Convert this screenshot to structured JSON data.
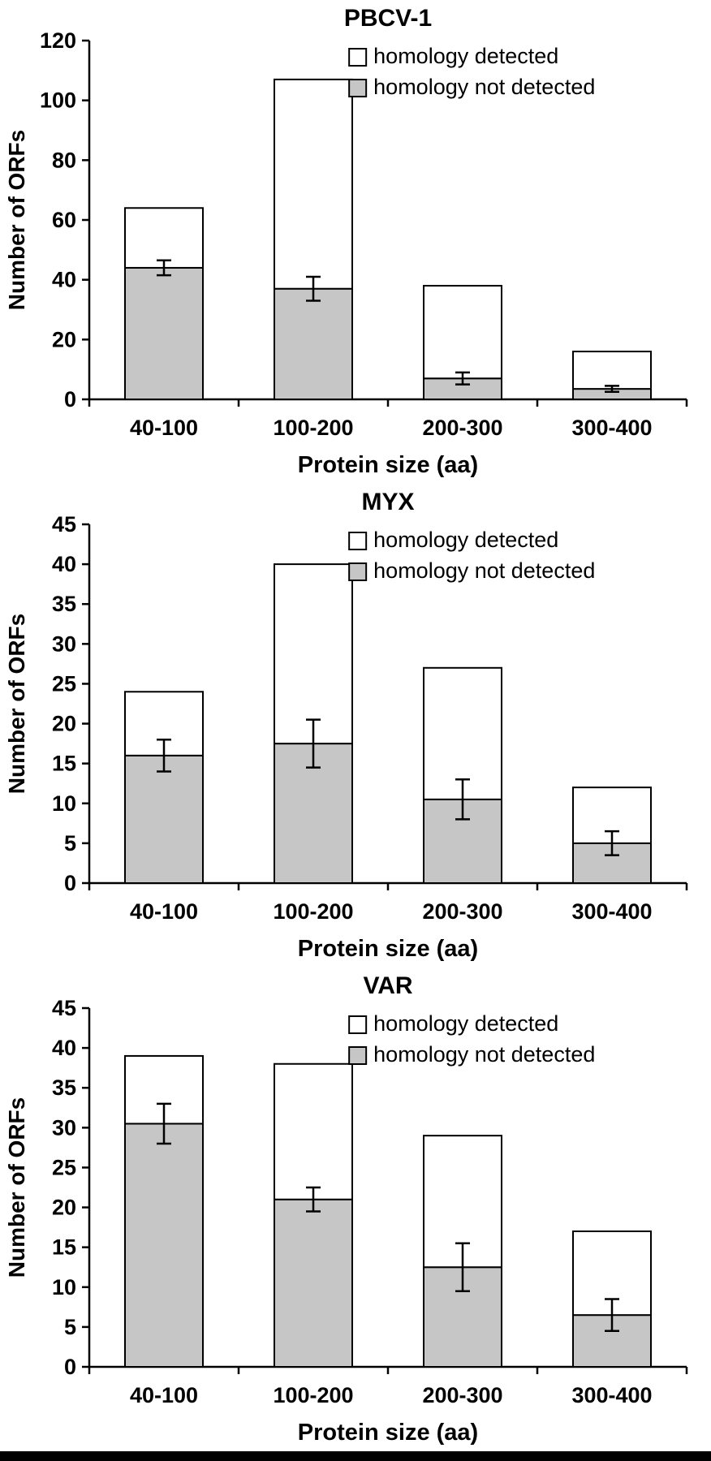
{
  "figure": {
    "background": "#ffffff",
    "bottom_border_color": "#000000",
    "bar_fill_gray": "#c6c6c6",
    "bar_fill_white": "#ffffff",
    "bar_stroke": "#000000"
  },
  "chart_data": [
    {
      "type": "bar",
      "stacked": true,
      "title": "PBCV-1",
      "xlabel": "Protein size (aa)",
      "ylabel": "Number of ORFs",
      "categories": [
        "40-100",
        "100-200",
        "200-300",
        "300-400"
      ],
      "ylim": [
        0,
        120
      ],
      "ytick_step": 20,
      "grid": false,
      "legend_position": "top-right",
      "legend": [
        {
          "label": "homology detected",
          "color": "#ffffff"
        },
        {
          "label": "homology not detected",
          "color": "#c6c6c6"
        }
      ],
      "series": [
        {
          "name": "homology not detected",
          "color": "#c6c6c6",
          "values": [
            44,
            37,
            7,
            3.5
          ],
          "error_bars": [
            2.5,
            4,
            2,
            1
          ]
        },
        {
          "name": "homology detected",
          "color": "#ffffff",
          "values": [
            20,
            70,
            31,
            12.5
          ]
        }
      ],
      "stack_totals": [
        64,
        107,
        38,
        16
      ]
    },
    {
      "type": "bar",
      "stacked": true,
      "title": "MYX",
      "xlabel": "Protein size (aa)",
      "ylabel": "Number of ORFs",
      "categories": [
        "40-100",
        "100-200",
        "200-300",
        "300-400"
      ],
      "ylim": [
        0,
        45
      ],
      "ytick_step": 5,
      "grid": false,
      "legend_position": "top-right",
      "legend": [
        {
          "label": "homology detected",
          "color": "#ffffff"
        },
        {
          "label": "homology not detected",
          "color": "#c6c6c6"
        }
      ],
      "series": [
        {
          "name": "homology not detected",
          "color": "#c6c6c6",
          "values": [
            16,
            17.5,
            10.5,
            5
          ],
          "error_bars": [
            2,
            3,
            2.5,
            1.5
          ]
        },
        {
          "name": "homology detected",
          "color": "#ffffff",
          "values": [
            8,
            22.5,
            16.5,
            7
          ]
        }
      ],
      "stack_totals": [
        24,
        40,
        27,
        12
      ]
    },
    {
      "type": "bar",
      "stacked": true,
      "title": "VAR",
      "xlabel": "Protein size (aa)",
      "ylabel": "Number of ORFs",
      "categories": [
        "40-100",
        "100-200",
        "200-300",
        "300-400"
      ],
      "ylim": [
        0,
        45
      ],
      "ytick_step": 5,
      "grid": false,
      "legend_position": "top-right",
      "legend": [
        {
          "label": "homology detected",
          "color": "#ffffff"
        },
        {
          "label": "homology not detected",
          "color": "#c6c6c6"
        }
      ],
      "series": [
        {
          "name": "homology not detected",
          "color": "#c6c6c6",
          "values": [
            30.5,
            21,
            12.5,
            6.5
          ],
          "error_bars": [
            2.5,
            1.5,
            3,
            2
          ]
        },
        {
          "name": "homology detected",
          "color": "#ffffff",
          "values": [
            8.5,
            17,
            16.5,
            10.5
          ]
        }
      ],
      "stack_totals": [
        39,
        38,
        29,
        17
      ]
    }
  ]
}
